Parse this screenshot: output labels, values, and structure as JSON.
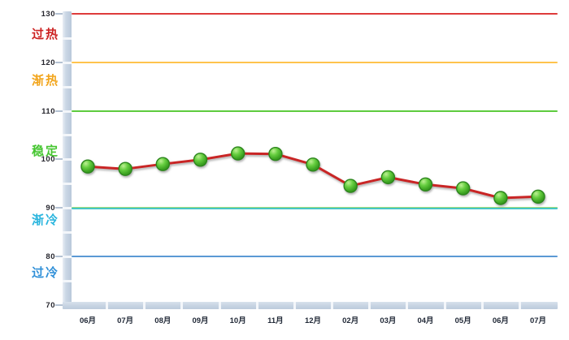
{
  "chart_data": {
    "type": "line",
    "title": "",
    "categories": [
      "06月",
      "07月",
      "08月",
      "09月",
      "10月",
      "11月",
      "12月",
      "02月",
      "03月",
      "04月",
      "05月",
      "06月",
      "07月"
    ],
    "series": [
      {
        "values": [
          98.5,
          98.0,
          99.0,
          99.9,
          101.2,
          101.1,
          98.9,
          94.5,
          96.3,
          94.8,
          94.0,
          92.0,
          92.3
        ],
        "line_color": "#c92525",
        "marker_fill": "#4cb82e",
        "marker_border": "#2c861c"
      }
    ],
    "y_ticks": [
      130,
      120,
      110,
      100,
      90,
      80,
      70
    ],
    "ylim": [
      70,
      130
    ],
    "xlabel": "",
    "ylabel": "",
    "grid": false,
    "legend": "none",
    "zones": [
      {
        "label": "过热",
        "boundary": 130,
        "line_color": "#de3b3b",
        "line_color2": "#de3b3b",
        "label_color": "#cc2222",
        "label_value": 125.6
      },
      {
        "label": "渐热",
        "boundary": 120,
        "line_color": "#ffc34d",
        "line_color2": "#ffc34d",
        "label_color": "#f2a51c",
        "label_value": 116.1
      },
      {
        "label": "稳定",
        "boundary": 110,
        "line_color": "#5ecb3e",
        "line_color2": "#5ecb3e",
        "label_color": "#46c631",
        "label_value": 101.6
      },
      {
        "label": "渐冷",
        "boundary": 90,
        "line_color": "#9edc7e",
        "line_color2": "#3fc5cb",
        "label_color": "#2ab5de",
        "label_value": 87.3
      },
      {
        "label": "过冷",
        "boundary": 80,
        "line_color": "#5b99d4",
        "line_color2": "#5b99d4",
        "label_color": "#3090d8",
        "label_value": 76.4
      }
    ]
  },
  "colors": {
    "background": "#ffffff",
    "axis_bar": "#c6d3e2",
    "tick_label": "#26262e",
    "month_label": "#222a38"
  }
}
